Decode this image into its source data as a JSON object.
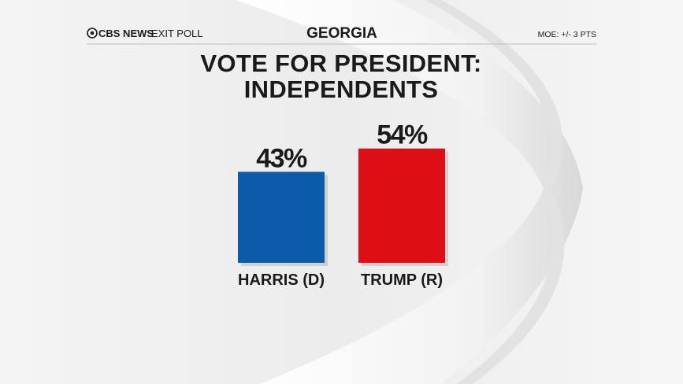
{
  "header": {
    "brand": "CBS NEWS",
    "label": "EXIT POLL",
    "state": "GEORGIA",
    "moe": "MOE: +/- 3 PTS"
  },
  "chart_data": {
    "type": "bar",
    "title": "VOTE FOR PRESIDENT: INDEPENDENTS",
    "categories": [
      "HARRIS (D)",
      "TRUMP (R)"
    ],
    "values": [
      43,
      54
    ],
    "value_labels": [
      "43%",
      "54%"
    ],
    "colors": [
      "#0b5ba9",
      "#dc0f17"
    ]
  }
}
